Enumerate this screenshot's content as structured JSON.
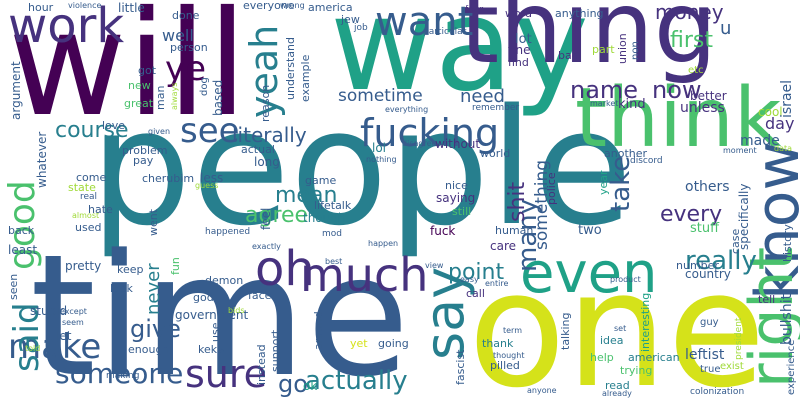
{
  "words": {
    "will": "will",
    "way": "way",
    "people": "people",
    "time": "time",
    "one": "one",
    "thing": "thing",
    "think": "think",
    "work": "work",
    "want": "want",
    "fucking": "fucking",
    "know": "know",
    "say": "say",
    "even": "even",
    "right": "right",
    "much": "much",
    "oh": "oh",
    "yeah": "yeah",
    "good": "good",
    "sure": "sure",
    "see": "see",
    "make": "make",
    "said": "said",
    "someone": "someone",
    "actually": "actually",
    "name": "name",
    "now": "now",
    "point": "point",
    "really": "really",
    "ye": "ye",
    "course": "course",
    "literally": "literally",
    "many": "many",
    "take": "take",
    "shit": "shit",
    "something": "something",
    "every": "every",
    "first": "first",
    "money": "money",
    "mean": "mean",
    "agree": "agree",
    "give": "give",
    "never": "never",
    "go": "go",
    "need": "need",
    "sometime": "sometime",
    "well": "well",
    "lot": "lot",
    "day": "day",
    "u": "u",
    "better": "better",
    "unless": "unless",
    "kind": "kind",
    "made": "made",
    "cool": "cool",
    "others": "others",
    "stuff": "stuff",
    "two": "two",
    "care": "care",
    "human": "human",
    "fuck": "fuck",
    "nice": "nice",
    "saying": "saying",
    "still": "still",
    "though": "though",
    "lifetalk": "lifetalk",
    "game": "game",
    "lol": "lol",
    "world": "world",
    "without": "without",
    "another": "another",
    "police": "police",
    "year": "year",
    "country": "country",
    "tell": "tell",
    "number": "number",
    "call": "call",
    "idea": "idea",
    "thank": "thank",
    "help": "help",
    "talking": "talking",
    "leftist": "leftist",
    "fascist": "fascist",
    "american": "american",
    "read": "read",
    "trying": "trying",
    "interesting": "interesting",
    "true": "true",
    "exist": "exist",
    "guy": "guy",
    "president": "president",
    "experience": "experience",
    "bullshit": "bullshit",
    "history": "history",
    "case": "case",
    "specifically": "specifically",
    "israel": "israel",
    "etc": "etc",
    "part": "part",
    "bad": "bad",
    "union": "union",
    "non": "non",
    "fine": "fine",
    "find": "find",
    "anything": "anything",
    "word": "word",
    "four": "four",
    "particular": "particular",
    "jew": "jew",
    "job": "job",
    "america": "america",
    "wrong": "wrong",
    "everyone": "everyone",
    "done": "done",
    "little": "little",
    "violence": "violence",
    "hour": "hour",
    "understand": "understand",
    "example": "example",
    "reason": "reason",
    "based": "based",
    "dog": "dog",
    "person": "person",
    "got": "got",
    "new": "new",
    "great": "great",
    "man": "man",
    "always": "always",
    "argument": "argument",
    "whatever": "whatever",
    "problem": "problem",
    "given": "given",
    "pay": "pay",
    "less": "less",
    "long": "long",
    "actual": "actual",
    "come": "come",
    "state": "state",
    "real": "real",
    "almost": "almost",
    "hate": "hate",
    "used": "used",
    "back": "back",
    "least": "least",
    "pretty": "pretty",
    "keep": "keep",
    "look": "look",
    "love": "love",
    "cherubim": "cherubim",
    "guess": "guess",
    "feel": "feel",
    "happened": "happened",
    "went": "went",
    "face": "face",
    "demon": "demon",
    "fun": "fun",
    "government": "government",
    "god": "god",
    "except": "except",
    "seem": "seem",
    "seen": "seen",
    "stupid": "stupid",
    "let": "let",
    "enough": "enough",
    "kekw": "kekw",
    "told": "told",
    "making": "making",
    "bids": "bids",
    "use": "use",
    "instead": "instead",
    "support": "support",
    "around": "around",
    "ok": "ok",
    "yet": "yet",
    "going": "going",
    "best": "best",
    "mod": "mod",
    "exactly": "exactly",
    "happen": "happen",
    "view": "view",
    "easy": "easy",
    "entire": "entire",
    "thought": "thought",
    "pilled": "pilled",
    "anyone": "anyone",
    "term": "term",
    "already": "already",
    "colonization": "colonization",
    "set": "set",
    "product": "product",
    "discord": "discord",
    "moment": "moment",
    "data": "data",
    "market": "market",
    "remember": "remember",
    "everything": "everything",
    "disagree": "disagree",
    "nothing": "nothing"
  }
}
